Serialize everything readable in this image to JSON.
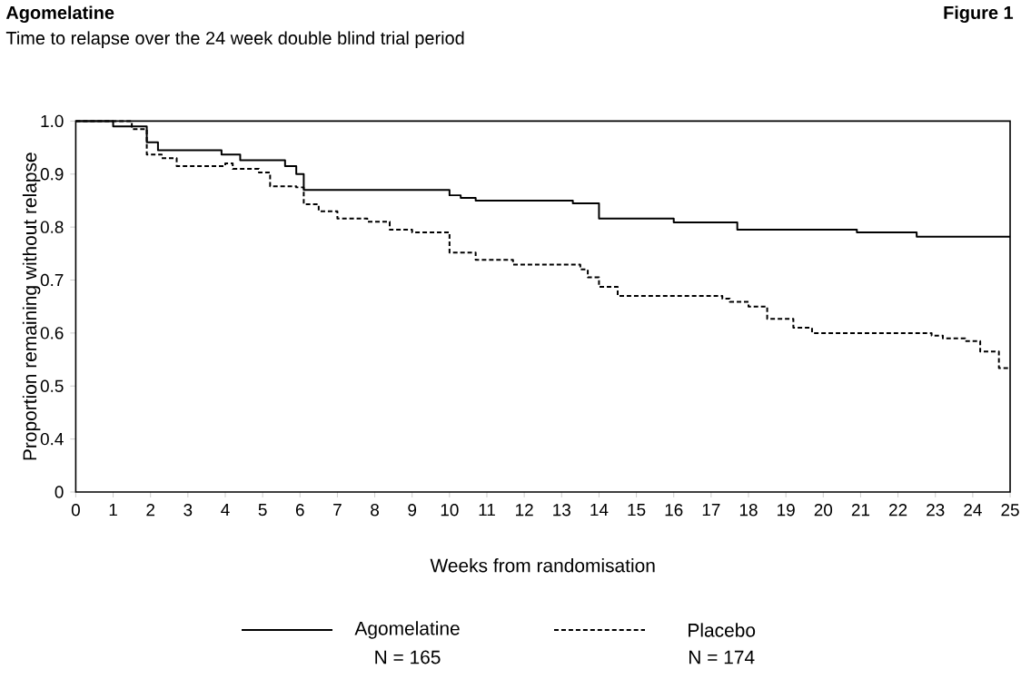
{
  "chart_data": {
    "type": "step",
    "title": "Agomelatine",
    "subtitle": "Time to relapse over the 24 week double blind trial period",
    "xlabel": "Weeks from randomisation",
    "ylabel": "Proportion remaining without relapse",
    "xlim": [
      0,
      25
    ],
    "xticks": [
      0,
      1,
      2,
      3,
      4,
      5,
      6,
      7,
      8,
      9,
      10,
      11,
      12,
      13,
      14,
      15,
      16,
      17,
      18,
      19,
      20,
      21,
      22,
      23,
      24,
      25
    ],
    "ylim": [
      0.3,
      1.0
    ],
    "yticks": [
      {
        "value": 0.3,
        "label": "0"
      },
      0.4,
      0.5,
      0.6,
      0.7,
      0.8,
      0.9,
      {
        "value": 1.0,
        "label": "1.0"
      }
    ],
    "grid": false,
    "legend": "bottom",
    "marker": "none",
    "annotations": [
      "Figure 1",
      "N = 165",
      "N = 174"
    ],
    "series": [
      {
        "name": "Agomelatine",
        "color": "#000000",
        "line_style": "solid",
        "x": [
          0,
          1.0,
          1.9,
          2.2,
          3.9,
          4.4,
          5.6,
          5.9,
          6.1,
          10.0,
          10.3,
          10.7,
          13.3,
          14.0,
          16.0,
          17.7,
          20.9,
          22.5,
          25
        ],
        "values": [
          1.0,
          0.99,
          0.96,
          0.945,
          0.937,
          0.926,
          0.915,
          0.9,
          0.87,
          0.86,
          0.855,
          0.85,
          0.845,
          0.816,
          0.809,
          0.795,
          0.79,
          0.782,
          0.782
        ]
      },
      {
        "name": "Placebo",
        "color": "#000000",
        "line_style": "dashed",
        "x": [
          0,
          1.5,
          1.9,
          2.3,
          2.7,
          4.0,
          4.2,
          4.9,
          5.2,
          5.9,
          6.1,
          6.5,
          7.0,
          7.8,
          8.4,
          9.0,
          10.0,
          10.7,
          11.7,
          13.5,
          13.7,
          14.0,
          14.5,
          17.3,
          17.5,
          18.0,
          18.5,
          19.2,
          19.7,
          22.9,
          23.2,
          23.8,
          24.2,
          24.7,
          25
        ],
        "values": [
          1.0,
          0.985,
          0.937,
          0.93,
          0.915,
          0.92,
          0.91,
          0.903,
          0.877,
          0.875,
          0.843,
          0.83,
          0.816,
          0.81,
          0.795,
          0.79,
          0.752,
          0.738,
          0.729,
          0.72,
          0.705,
          0.687,
          0.67,
          0.665,
          0.659,
          0.65,
          0.627,
          0.61,
          0.6,
          0.595,
          0.59,
          0.585,
          0.565,
          0.534,
          0.534
        ]
      }
    ]
  }
}
